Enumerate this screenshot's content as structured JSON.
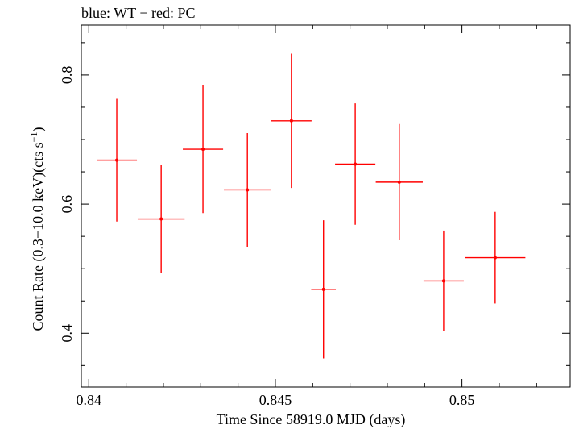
{
  "chart_data": {
    "type": "scatter",
    "title": "blue: WT − red: PC",
    "xlabel": "Time Since 58919.0 MJD (days)",
    "ylabel_main": "Count Rate (0.3−10.0 keV)(cts s",
    "ylabel_sup": "−1",
    "ylabel_end": ")",
    "xlim": [
      0.8398,
      0.8529
    ],
    "ylim": [
      0.3167,
      0.8773
    ],
    "xticks": [
      0.84,
      0.845,
      0.85
    ],
    "xtick_labels": [
      "0.84",
      "0.845",
      "0.85"
    ],
    "yticks": [
      0.4,
      0.6,
      0.8
    ],
    "ytick_labels": [
      "0.4",
      "0.6",
      "0.8"
    ],
    "grid": false,
    "series": [
      {
        "color": "#ff0000",
        "points": [
          {
            "x": 0.84075,
            "xerr": 0.00054,
            "y": 0.668,
            "yerr": 0.095
          },
          {
            "x": 0.84194,
            "xerr": 0.00063,
            "y": 0.577,
            "yerr": 0.083
          },
          {
            "x": 0.84306,
            "xerr": 0.00054,
            "y": 0.685,
            "yerr": 0.099
          },
          {
            "x": 0.84425,
            "xerr": 0.00063,
            "y": 0.622,
            "yerr": 0.088
          },
          {
            "x": 0.84543,
            "xerr": 0.00054,
            "y": 0.729,
            "yerr": 0.104
          },
          {
            "x": 0.84629,
            "xerr": 0.00033,
            "y": 0.468,
            "yerr": 0.107
          },
          {
            "x": 0.84714,
            "xerr": 0.00054,
            "y": 0.662,
            "yerr": 0.094
          },
          {
            "x": 0.84832,
            "xerr": 0.00063,
            "y": 0.634,
            "yerr": 0.09
          },
          {
            "x": 0.84951,
            "xerr": 0.00054,
            "y": 0.481,
            "yerr": 0.078
          },
          {
            "x": 0.85089,
            "xerr": 0.00081,
            "y": 0.517,
            "yerr": 0.071
          }
        ]
      }
    ]
  }
}
